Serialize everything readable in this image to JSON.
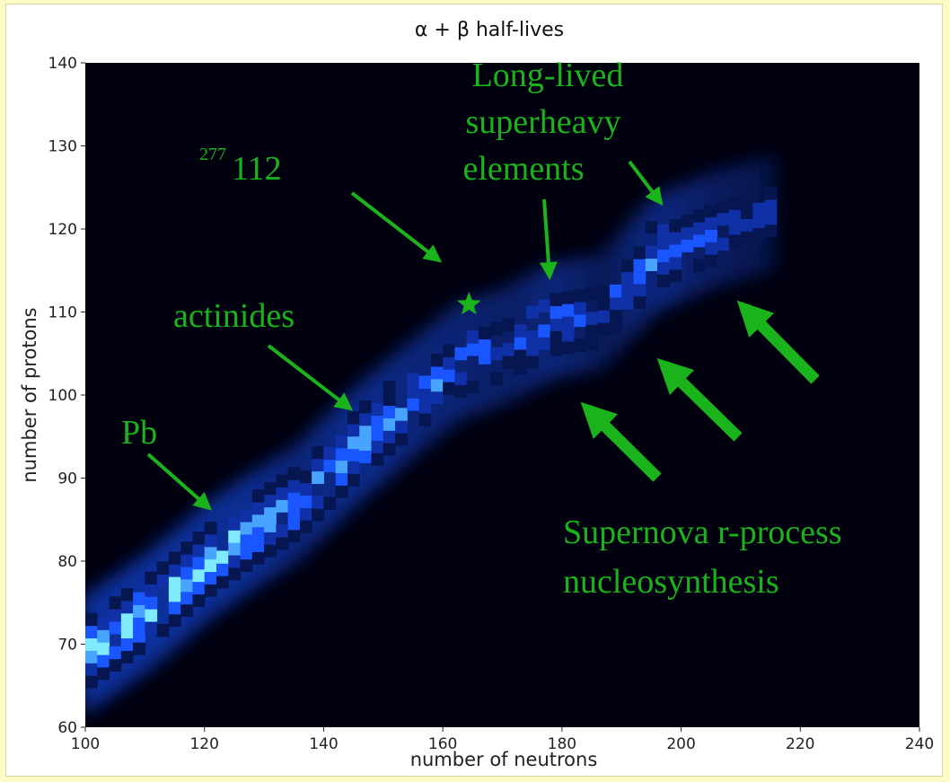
{
  "chart_data": {
    "type": "heatmap",
    "title": "α + β half-lives",
    "xlabel": "number of neutrons",
    "ylabel": "number of protons",
    "xlim": [
      100,
      240
    ],
    "ylim": [
      60,
      140
    ],
    "xticks": [
      "100",
      "120",
      "140",
      "160",
      "180",
      "200",
      "220",
      "240"
    ],
    "yticks": [
      "60",
      "70",
      "80",
      "90",
      "100",
      "110",
      "120",
      "130",
      "140"
    ],
    "colormap": [
      "#00000f",
      "#061650",
      "#1030a8",
      "#1a56ff",
      "#49a4ff",
      "#80eaff"
    ],
    "background": "#00000f",
    "band_centerline": [
      {
        "n": 100,
        "z": 69,
        "intensity": 1.0
      },
      {
        "n": 110,
        "z": 74,
        "intensity": 1.0
      },
      {
        "n": 120,
        "z": 80,
        "intensity": 0.95
      },
      {
        "n": 126,
        "z": 83,
        "intensity": 0.9
      },
      {
        "n": 135,
        "z": 87,
        "intensity": 0.7
      },
      {
        "n": 145,
        "z": 94,
        "intensity": 0.85
      },
      {
        "n": 155,
        "z": 100,
        "intensity": 0.7
      },
      {
        "n": 162,
        "z": 104,
        "intensity": 0.65
      },
      {
        "n": 170,
        "z": 106,
        "intensity": 0.55
      },
      {
        "n": 178,
        "z": 109,
        "intensity": 0.7
      },
      {
        "n": 186,
        "z": 110,
        "intensity": 0.45
      },
      {
        "n": 195,
        "z": 117,
        "intensity": 0.75
      },
      {
        "n": 205,
        "z": 120,
        "intensity": 0.5
      },
      {
        "n": 215,
        "z": 122,
        "intensity": 0.35
      }
    ],
    "markers": [
      {
        "label": "277 112",
        "n": 165,
        "z": 112,
        "shape": "star"
      }
    ],
    "annotations": {
      "long_lived": [
        "Long-lived",
        "superheavy",
        "elements"
      ],
      "nucleus_sup": "277",
      "nucleus_num": "112",
      "actinides": "actinides",
      "pb": "Pb",
      "supernova": [
        "Supernova r-process",
        "nucleosynthesis"
      ]
    },
    "annotation_color": "#1bb31b"
  }
}
